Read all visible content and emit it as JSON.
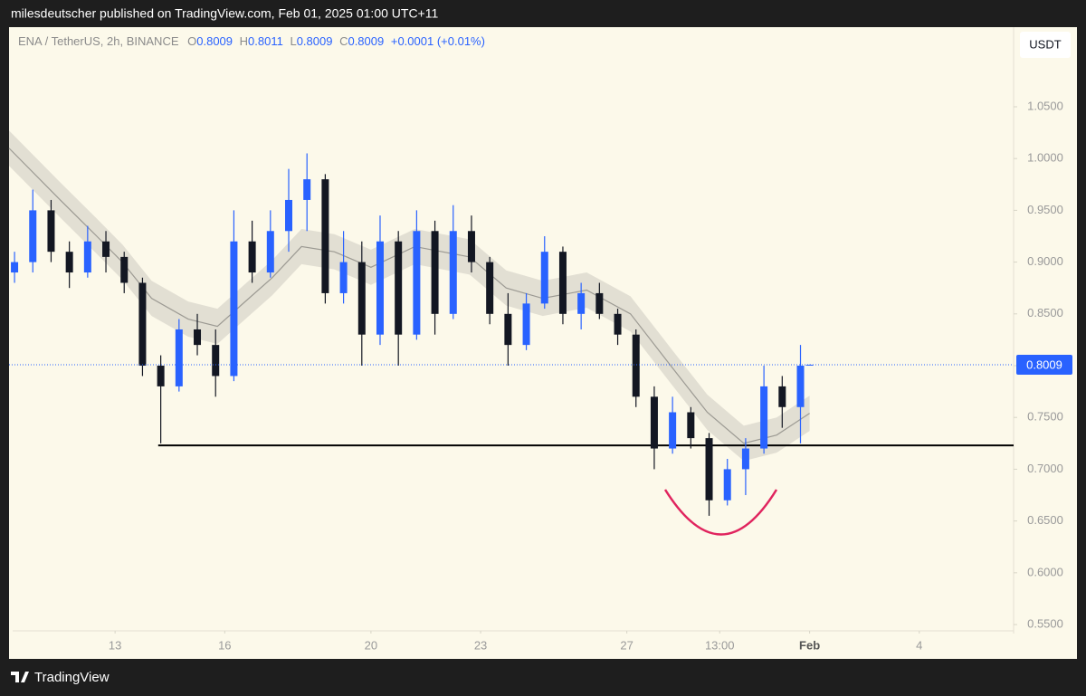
{
  "header": {
    "text": "milesdeutscher published on TradingView.com, Feb 01, 2025 01:00 UTC+11"
  },
  "chart_data": {
    "type": "candlestick",
    "symbol": "ENA / TetherUS, 2h, BINANCE",
    "ohlc_legend": [
      {
        "label": "O",
        "value": 0.8009
      },
      {
        "label": "H",
        "value": 0.8011
      },
      {
        "label": "L",
        "value": 0.8009
      },
      {
        "label": "C",
        "value": 0.8009
      }
    ],
    "change": "+0.0001 (+0.01%)",
    "currency": "USDT",
    "x": [
      10.25,
      10.75,
      11.25,
      11.75,
      12.25,
      12.75,
      13.25,
      13.75,
      14.25,
      14.75,
      15.25,
      15.75,
      16.25,
      16.75,
      17.25,
      17.75,
      18.25,
      18.75,
      19.25,
      19.75,
      20.25,
      20.75,
      21.25,
      21.75,
      22.25,
      22.75,
      23.25,
      23.75,
      24.25,
      24.75,
      25.25,
      25.75,
      26.25,
      26.75,
      27.25,
      27.75,
      28.25,
      28.75,
      29.25,
      29.75,
      30.25,
      30.75,
      31.25,
      31.75,
      32.0
    ],
    "open": [
      0.89,
      0.9,
      0.95,
      0.91,
      0.89,
      0.92,
      0.905,
      0.88,
      0.8,
      0.78,
      0.835,
      0.82,
      0.79,
      0.92,
      0.89,
      0.93,
      0.96,
      0.98,
      0.87,
      0.9,
      0.83,
      0.92,
      0.83,
      0.93,
      0.85,
      0.93,
      0.9,
      0.85,
      0.82,
      0.86,
      0.91,
      0.85,
      0.87,
      0.85,
      0.83,
      0.77,
      0.72,
      0.755,
      0.73,
      0.67,
      0.7,
      0.72,
      0.78,
      0.76,
      0.8009
    ],
    "high": [
      0.91,
      0.97,
      0.96,
      0.92,
      0.935,
      0.93,
      0.91,
      0.885,
      0.81,
      0.845,
      0.85,
      0.835,
      0.95,
      0.94,
      0.95,
      0.99,
      1.005,
      0.985,
      0.93,
      0.92,
      0.945,
      0.93,
      0.95,
      0.94,
      0.955,
      0.945,
      0.905,
      0.87,
      0.87,
      0.925,
      0.915,
      0.88,
      0.88,
      0.855,
      0.835,
      0.78,
      0.77,
      0.76,
      0.735,
      0.71,
      0.73,
      0.8,
      0.79,
      0.82,
      0.8011
    ],
    "low": [
      0.88,
      0.89,
      0.9,
      0.875,
      0.885,
      0.89,
      0.87,
      0.79,
      0.725,
      0.775,
      0.81,
      0.77,
      0.785,
      0.88,
      0.885,
      0.91,
      0.93,
      0.86,
      0.86,
      0.8,
      0.82,
      0.8,
      0.825,
      0.83,
      0.845,
      0.89,
      0.84,
      0.8,
      0.815,
      0.855,
      0.84,
      0.835,
      0.845,
      0.82,
      0.76,
      0.7,
      0.715,
      0.72,
      0.655,
      0.665,
      0.675,
      0.715,
      0.74,
      0.725,
      0.8009
    ],
    "close": [
      0.9,
      0.95,
      0.91,
      0.89,
      0.92,
      0.905,
      0.88,
      0.8,
      0.78,
      0.835,
      0.82,
      0.79,
      0.92,
      0.89,
      0.93,
      0.96,
      0.98,
      0.87,
      0.9,
      0.83,
      0.92,
      0.83,
      0.93,
      0.85,
      0.93,
      0.9,
      0.85,
      0.82,
      0.86,
      0.91,
      0.85,
      0.87,
      0.85,
      0.83,
      0.77,
      0.72,
      0.755,
      0.73,
      0.67,
      0.7,
      0.72,
      0.78,
      0.76,
      0.8,
      0.8009
    ],
    "up_color": "#2962ff",
    "down_color": "#131722",
    "xlim": [
      10.1,
      37.58
    ],
    "xticks": [
      13,
      16,
      20,
      23,
      27,
      {
        "value": 29.54,
        "label": "13:00"
      },
      {
        "value": 32,
        "label": "Feb"
      },
      {
        "value": 35,
        "label": "4"
      }
    ],
    "ylim": [
      0.5413,
      1.1269
    ],
    "yticks": [
      {
        "value": 0.55,
        "label": "0.5500"
      },
      {
        "value": 0.6,
        "label": "0.6000"
      },
      {
        "value": 0.65,
        "label": "0.6500"
      },
      {
        "value": 0.7,
        "label": "0.7000"
      },
      {
        "value": 0.75,
        "label": "0.7500"
      },
      {
        "value": 0.8,
        "label": "0.8000"
      },
      {
        "value": 0.85,
        "label": "0.8500"
      },
      {
        "value": 0.9,
        "label": "0.9000"
      },
      {
        "value": 0.95,
        "label": "0.9500"
      },
      {
        "value": 1.0,
        "label": "1.0000"
      },
      {
        "value": 1.05,
        "label": "1.0500"
      }
    ],
    "last_price": 0.8009,
    "ma": {
      "x": [
        10.1,
        11.5,
        12.5,
        13.2,
        14,
        15,
        15.8,
        16.5,
        17.3,
        18.1,
        19,
        20,
        21.2,
        22.7,
        23.7,
        24.7,
        25.9,
        27.1,
        28.2,
        29.2,
        30.2,
        31.1,
        32.0
      ],
      "values": [
        1.01,
        0.96,
        0.925,
        0.9,
        0.865,
        0.845,
        0.838,
        0.86,
        0.885,
        0.915,
        0.91,
        0.895,
        0.915,
        0.905,
        0.875,
        0.865,
        0.873,
        0.85,
        0.8,
        0.755,
        0.725,
        0.733,
        0.754
      ],
      "upper": [
        1.027,
        0.977,
        0.942,
        0.917,
        0.882,
        0.862,
        0.855,
        0.877,
        0.902,
        0.932,
        0.927,
        0.912,
        0.932,
        0.922,
        0.892,
        0.882,
        0.89,
        0.867,
        0.817,
        0.772,
        0.742,
        0.75,
        0.771
      ],
      "lower": [
        0.993,
        0.943,
        0.908,
        0.883,
        0.848,
        0.828,
        0.821,
        0.843,
        0.868,
        0.898,
        0.893,
        0.878,
        0.898,
        0.888,
        0.858,
        0.848,
        0.856,
        0.833,
        0.783,
        0.738,
        0.708,
        0.716,
        0.737
      ]
    },
    "support": {
      "value": 0.723,
      "x_start": 14.18
    }
  },
  "footer": {
    "brand": "TradingView"
  }
}
